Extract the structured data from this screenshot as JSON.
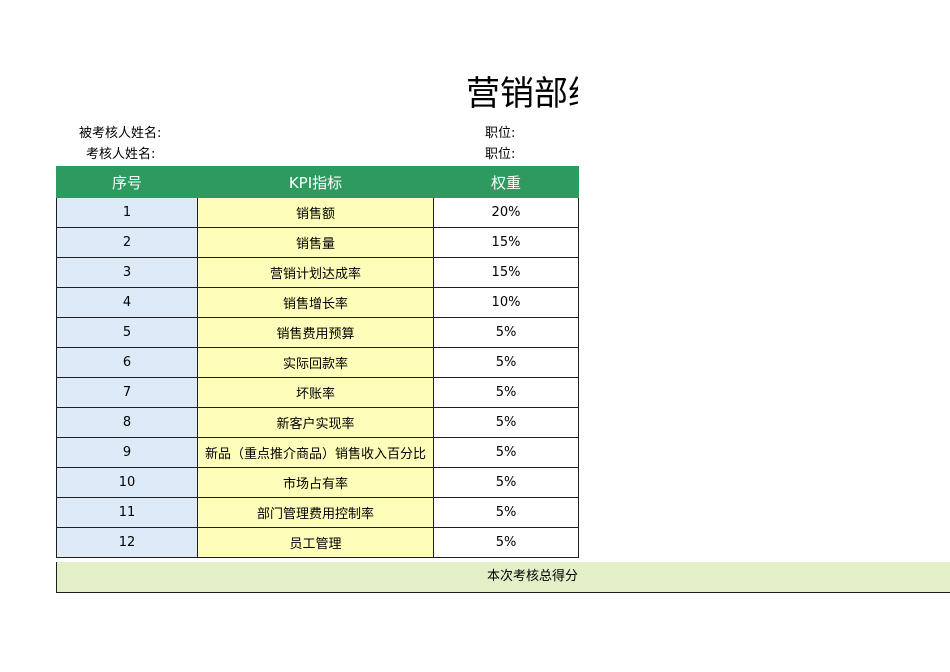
{
  "title": "营销部绩",
  "info": {
    "assessee_label": "被考核人姓名:",
    "assessor_label": "考核人姓名:",
    "position_label_1": "职位:",
    "position_label_2": "职位:"
  },
  "table": {
    "headers": {
      "seq": "序号",
      "kpi": "KPI指标",
      "weight": "权重"
    },
    "rows": [
      {
        "seq": "1",
        "kpi": "销售额",
        "weight": "20%"
      },
      {
        "seq": "2",
        "kpi": "销售量",
        "weight": "15%"
      },
      {
        "seq": "3",
        "kpi": "营销计划达成率",
        "weight": "15%"
      },
      {
        "seq": "4",
        "kpi": "销售增长率",
        "weight": "10%"
      },
      {
        "seq": "5",
        "kpi": "销售费用预算",
        "weight": "5%"
      },
      {
        "seq": "6",
        "kpi": "实际回款率",
        "weight": "5%"
      },
      {
        "seq": "7",
        "kpi": "坏账率",
        "weight": "5%"
      },
      {
        "seq": "8",
        "kpi": "新客户实现率",
        "weight": "5%"
      },
      {
        "seq": "9",
        "kpi": "新品（重点推介商品）销售收入百分比",
        "weight": "5%"
      },
      {
        "seq": "10",
        "kpi": "市场占有率",
        "weight": "5%"
      },
      {
        "seq": "11",
        "kpi": "部门管理费用控制率",
        "weight": "5%"
      },
      {
        "seq": "12",
        "kpi": "员工管理",
        "weight": "5%"
      }
    ],
    "total_label": "本次考核总得分"
  },
  "colors": {
    "header_green": "#2f9a5f",
    "seq_blue": "#dcebf7",
    "kpi_yellow": "#fefdb9",
    "total_green": "#e3efc7"
  }
}
